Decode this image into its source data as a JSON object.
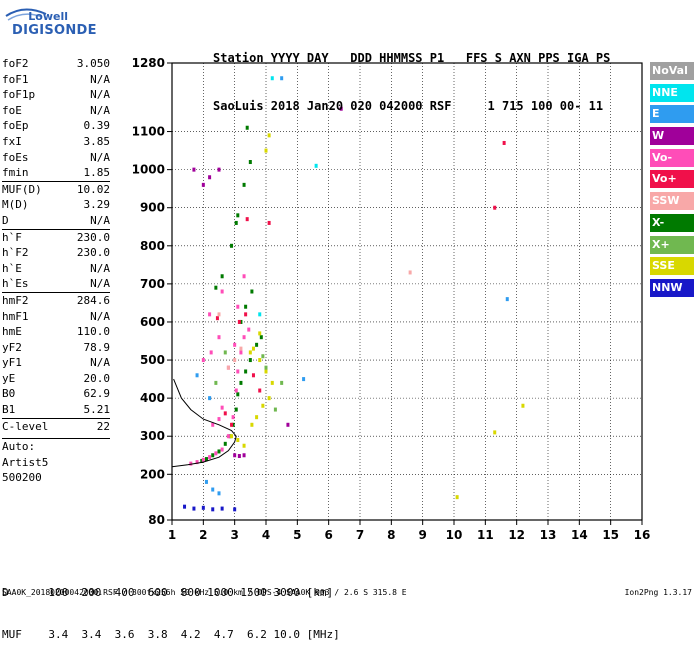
{
  "logo": {
    "top": "Lowell",
    "bottom": "DIGISONDE"
  },
  "header": {
    "line1": "Station YYYY DAY   DDD HHMMSS P1   FFS S AXN PPS IGA PS",
    "line2": "SaoLuis 2018 Jan20 020 042000 RSF     1 715 100 00- 11"
  },
  "params": [
    {
      "name": "foF2",
      "value": "3.050"
    },
    {
      "name": "foF1",
      "value": "N/A"
    },
    {
      "name": "foF1p",
      "value": "N/A"
    },
    {
      "name": "foE",
      "value": "N/A"
    },
    {
      "name": "foEp",
      "value": "0.39"
    },
    {
      "name": "fxI",
      "value": "3.85"
    },
    {
      "name": "foEs",
      "value": "N/A"
    },
    {
      "name": "fmin",
      "value": "1.85"
    },
    {
      "name": "MUF(D)",
      "value": "10.02",
      "sep": true
    },
    {
      "name": "M(D)",
      "value": "3.29"
    },
    {
      "name": "D",
      "value": "N/A"
    },
    {
      "name": "h`F",
      "value": "230.0",
      "sep": true
    },
    {
      "name": "h`F2",
      "value": "230.0"
    },
    {
      "name": "h`E",
      "value": "N/A"
    },
    {
      "name": "h`Es",
      "value": "N/A"
    },
    {
      "name": "hmF2",
      "value": "284.6",
      "sep": true
    },
    {
      "name": "hmF1",
      "value": "N/A"
    },
    {
      "name": "hmE",
      "value": "110.0"
    },
    {
      "name": "yF2",
      "value": "78.9"
    },
    {
      "name": "yF1",
      "value": "N/A"
    },
    {
      "name": "yE",
      "value": "20.0"
    },
    {
      "name": "B0",
      "value": "62.9"
    },
    {
      "name": "B1",
      "value": "5.21"
    },
    {
      "name": "C-level",
      "value": "22",
      "sep": true
    }
  ],
  "auto": {
    "l1": "Auto:",
    "l2": "Artist5",
    "l3": "500200"
  },
  "legend": [
    {
      "label": "NoVal",
      "color": "#a0a0a0"
    },
    {
      "label": "NNE",
      "color": "#00e5ee"
    },
    {
      "label": "E",
      "color": "#2f9cf0"
    },
    {
      "label": "W",
      "color": "#a0009a"
    },
    {
      "label": "Vo-",
      "color": "#ff4db8"
    },
    {
      "label": "Vo+",
      "color": "#f0104a"
    },
    {
      "label": "SSW",
      "color": "#f8a8a8"
    },
    {
      "label": "X-",
      "color": "#007a00"
    },
    {
      "label": "X+",
      "color": "#70b850"
    },
    {
      "label": "SSE",
      "color": "#d8d800"
    },
    {
      "label": "NNW",
      "color": "#1818c8"
    }
  ],
  "bottom_table": {
    "row1": "D      100  200  400  600  800 1000 1500 3000 [km]",
    "row2": "MUF    3.4  3.4  3.6  3.8  4.2  4.7  6.2 10.0 [MHz]"
  },
  "footer": "SAA0K_20180200042000.RSF / 300fx256h 50 kHz 5.0 km / DPS-4 SAA0K 903 / 2.6 S 315.8 E",
  "version": "Ion2Png 1.3.17",
  "chart_data": {
    "type": "scatter",
    "xlim": [
      1,
      16
    ],
    "x_ticks": [
      1,
      2,
      3,
      4,
      5,
      6,
      7,
      8,
      9,
      10,
      11,
      12,
      13,
      14,
      15,
      16
    ],
    "ylim": [
      80,
      1280
    ],
    "y_ticks": [
      80,
      200,
      300,
      400,
      500,
      600,
      700,
      800,
      900,
      1000,
      1100,
      1280
    ],
    "grid": true,
    "traces": [
      {
        "name": "X-",
        "color": "#007a00",
        "points": [
          [
            1.95,
            235
          ],
          [
            2.1,
            240
          ],
          [
            2.3,
            250
          ],
          [
            2.5,
            260
          ],
          [
            2.7,
            280
          ],
          [
            2.85,
            300
          ],
          [
            2.95,
            330
          ],
          [
            3.05,
            370
          ],
          [
            3.1,
            410
          ],
          [
            3.2,
            440
          ],
          [
            3.35,
            470
          ],
          [
            3.5,
            500
          ],
          [
            3.7,
            540
          ],
          [
            3.85,
            560
          ],
          [
            2.4,
            690
          ],
          [
            2.6,
            720
          ],
          [
            2.9,
            800
          ],
          [
            3.1,
            880
          ],
          [
            3.3,
            960
          ],
          [
            3.5,
            1020
          ],
          [
            3.2,
            600
          ],
          [
            3.35,
            640
          ],
          [
            3.55,
            680
          ],
          [
            3.4,
            1110
          ],
          [
            3.05,
            860
          ]
        ]
      },
      {
        "name": "Vo-",
        "color": "#ff4db8",
        "points": [
          [
            1.6,
            228
          ],
          [
            1.8,
            232
          ],
          [
            2.0,
            238
          ],
          [
            2.2,
            245
          ],
          [
            2.4,
            255
          ],
          [
            2.6,
            265
          ],
          [
            2.8,
            300
          ],
          [
            2.95,
            350
          ],
          [
            3.05,
            420
          ],
          [
            3.1,
            470
          ],
          [
            3.2,
            520
          ],
          [
            3.3,
            560
          ],
          [
            3.45,
            580
          ],
          [
            2.3,
            330
          ],
          [
            2.5,
            345
          ],
          [
            2.6,
            375
          ],
          [
            2.0,
            500
          ],
          [
            2.25,
            520
          ],
          [
            2.5,
            560
          ],
          [
            2.2,
            620
          ],
          [
            2.6,
            680
          ],
          [
            3.1,
            640
          ],
          [
            3.3,
            720
          ],
          [
            2.8,
            480
          ],
          [
            3.0,
            540
          ]
        ]
      },
      {
        "name": "Vo+",
        "color": "#f0104a",
        "points": [
          [
            2.7,
            360
          ],
          [
            2.9,
            330
          ],
          [
            3.15,
            600
          ],
          [
            3.35,
            620
          ],
          [
            2.45,
            610
          ],
          [
            3.6,
            460
          ],
          [
            3.8,
            420
          ],
          [
            3.4,
            870
          ],
          [
            4.1,
            860
          ],
          [
            11.6,
            1070
          ],
          [
            11.3,
            900
          ]
        ]
      },
      {
        "name": "SSE",
        "color": "#d8d800",
        "points": [
          [
            3.6,
            530
          ],
          [
            3.8,
            500
          ],
          [
            4.0,
            470
          ],
          [
            4.2,
            440
          ],
          [
            4.1,
            400
          ],
          [
            3.9,
            380
          ],
          [
            3.7,
            350
          ],
          [
            3.55,
            330
          ],
          [
            2.9,
            300
          ],
          [
            3.1,
            290
          ],
          [
            3.3,
            275
          ],
          [
            4.0,
            1050
          ],
          [
            4.1,
            1090
          ],
          [
            3.8,
            570
          ],
          [
            3.5,
            520
          ],
          [
            10.1,
            140
          ],
          [
            12.2,
            380
          ],
          [
            11.3,
            310
          ]
        ]
      },
      {
        "name": "W",
        "color": "#a0009a",
        "points": [
          [
            1.7,
            1000
          ],
          [
            2.0,
            960
          ],
          [
            2.2,
            980
          ],
          [
            2.5,
            1000
          ],
          [
            3.0,
            250
          ],
          [
            3.15,
            248
          ],
          [
            3.3,
            250
          ],
          [
            6.4,
            1160
          ],
          [
            4.7,
            330
          ]
        ]
      },
      {
        "name": "E",
        "color": "#2f9cf0",
        "points": [
          [
            2.1,
            180
          ],
          [
            2.3,
            160
          ],
          [
            2.5,
            150
          ],
          [
            1.8,
            460
          ],
          [
            2.2,
            400
          ],
          [
            4.5,
            1240
          ],
          [
            5.2,
            450
          ],
          [
            11.7,
            660
          ]
        ]
      },
      {
        "name": "NNE",
        "color": "#00e5ee",
        "points": [
          [
            4.2,
            1240
          ],
          [
            5.6,
            1010
          ],
          [
            3.8,
            620
          ]
        ]
      },
      {
        "name": "NNW",
        "color": "#1818c8",
        "points": [
          [
            1.4,
            115
          ],
          [
            1.7,
            110
          ],
          [
            2.0,
            112
          ],
          [
            2.3,
            108
          ],
          [
            2.6,
            110
          ],
          [
            3.0,
            108
          ]
        ]
      },
      {
        "name": "X+",
        "color": "#70b850",
        "points": [
          [
            2.4,
            440
          ],
          [
            2.7,
            520
          ],
          [
            3.9,
            510
          ],
          [
            4.0,
            480
          ],
          [
            4.5,
            440
          ],
          [
            4.3,
            370
          ]
        ]
      },
      {
        "name": "SSW",
        "color": "#f8a8a8",
        "points": [
          [
            2.8,
            480
          ],
          [
            3.0,
            500
          ],
          [
            3.2,
            530
          ],
          [
            2.5,
            620
          ],
          [
            8.6,
            730
          ]
        ]
      }
    ],
    "profile": [
      [
        1.0,
        220
      ],
      [
        1.5,
        225
      ],
      [
        2.0,
        232
      ],
      [
        2.5,
        245
      ],
      [
        2.8,
        262
      ],
      [
        3.0,
        285
      ],
      [
        3.05,
        300
      ],
      [
        2.9,
        315
      ],
      [
        2.5,
        330
      ],
      [
        2.0,
        345
      ],
      [
        1.6,
        370
      ],
      [
        1.3,
        400
      ],
      [
        1.05,
        450
      ]
    ]
  }
}
